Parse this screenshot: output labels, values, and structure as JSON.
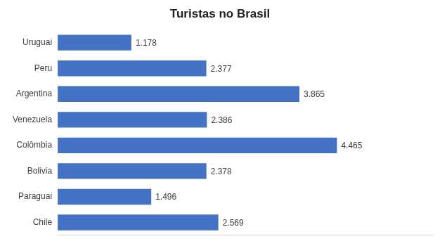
{
  "chart_data": {
    "type": "bar",
    "title": "Turistas no Brasil",
    "orientation": "horizontal",
    "categories": [
      "Uruguai",
      "Peru",
      "Argentina",
      "Venezuela",
      "Colômbia",
      "Bolivia",
      "Paraguai",
      "Chile"
    ],
    "values": [
      1178,
      2377,
      3865,
      2386,
      4465,
      2378,
      1496,
      2569
    ],
    "value_labels": [
      "1.178",
      "2.377",
      "3.865",
      "2.386",
      "4.465",
      "2.378",
      "1.496",
      "2.569"
    ],
    "color": "#4472c4",
    "xlim": [
      0,
      6000
    ],
    "grid": false,
    "data_labels": true,
    "tick_labels": "y"
  }
}
